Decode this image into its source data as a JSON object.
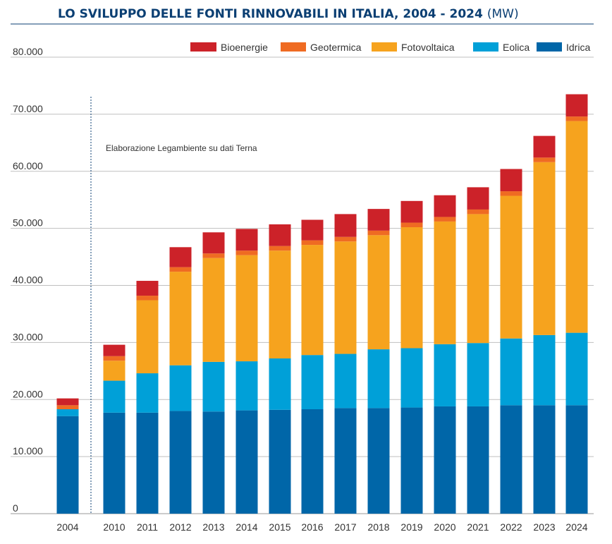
{
  "chart_data": {
    "type": "bar",
    "stacked": true,
    "title": "LO SVILUPPO DELLE FONTI RINNOVABILI IN ITALIA, 2004 - 2024",
    "title_unit": "(MW)",
    "note": "Elaborazione Legambiente su dati Terna",
    "categories": [
      "2004",
      "2010",
      "2011",
      "2012",
      "2013",
      "2014",
      "2015",
      "2016",
      "2017",
      "2018",
      "2019",
      "2020",
      "2021",
      "2022",
      "2023",
      "2024"
    ],
    "ylim": [
      0,
      80000
    ],
    "yticks": [
      0,
      10000,
      20000,
      30000,
      40000,
      50000,
      60000,
      70000,
      80000
    ],
    "ytick_labels": [
      "0",
      "10.000",
      "20.000",
      "30.000",
      "40.000",
      "50.000",
      "60.000",
      "70.000",
      "80.000"
    ],
    "grid": true,
    "legend_position": "top-right",
    "series": [
      {
        "name": "Idrica",
        "color": "#0066a8",
        "values": [
          17100,
          17700,
          17700,
          18000,
          17900,
          18100,
          18200,
          18300,
          18500,
          18500,
          18600,
          18800,
          18800,
          19000,
          19000,
          19000
        ]
      },
      {
        "name": "Eolica",
        "color": "#00a0d8",
        "values": [
          1200,
          5600,
          6900,
          8000,
          8700,
          8600,
          9000,
          9500,
          9500,
          10300,
          10400,
          10900,
          11100,
          11700,
          12300,
          12700
        ]
      },
      {
        "name": "Fotovoltaica",
        "color": "#f6a31e",
        "values": [
          0,
          3500,
          12800,
          16400,
          18200,
          18600,
          18900,
          19300,
          19700,
          20000,
          21200,
          21500,
          22600,
          25000,
          30300,
          37100
        ]
      },
      {
        "name": "Geotermica",
        "color": "#ef6b22",
        "values": [
          700,
          800,
          800,
          800,
          800,
          800,
          800,
          800,
          800,
          800,
          800,
          800,
          800,
          800,
          800,
          800
        ]
      },
      {
        "name": "Bioenergie",
        "color": "#cc2229",
        "values": [
          1200,
          2000,
          2600,
          3500,
          3700,
          3800,
          3800,
          3600,
          4000,
          3800,
          3800,
          3800,
          3900,
          3900,
          3800,
          3900
        ]
      }
    ],
    "legend_order": [
      "Bioenergie",
      "Geotermica",
      "Fotovoltaica",
      "Eolica",
      "Idrica"
    ]
  }
}
